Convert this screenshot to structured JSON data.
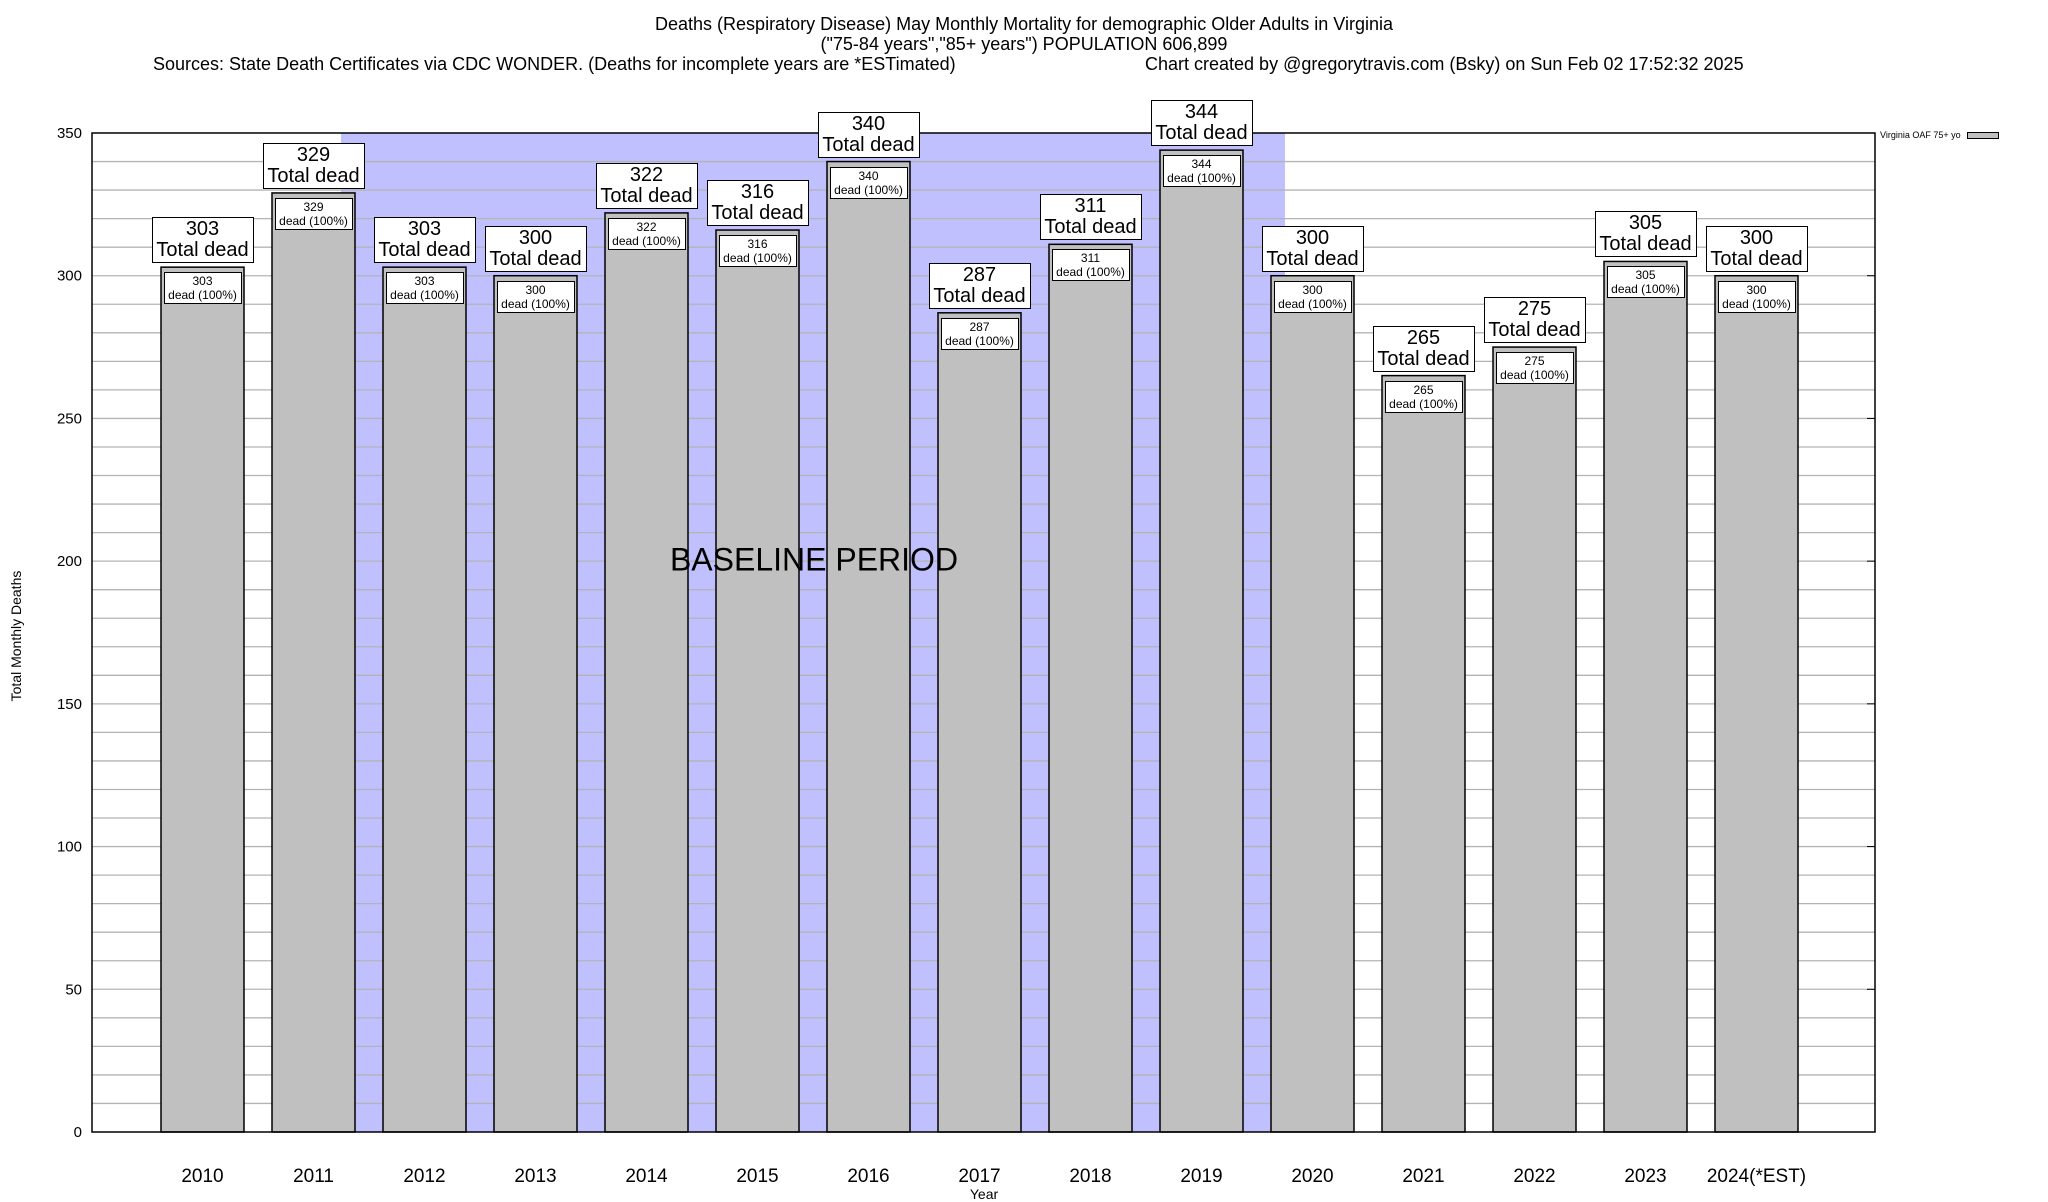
{
  "title_lines": [
    "Deaths (Respiratory Disease) May Monthly Mortality for demographic Older Adults in Virginia",
    "(\"75-84 years\",\"85+ years\") POPULATION 606,899"
  ],
  "sources": "Sources: State Death Certificates via CDC WONDER. (Deaths for incomplete years are *ESTimated)",
  "credit": "Chart created by @gregorytravis.com (Bsky) on Sun Feb 02 17:52:32 2025",
  "chart_data": {
    "type": "bar",
    "xlabel": "Year",
    "ylabel": "Total Monthly Deaths",
    "ylim": [
      0,
      350
    ],
    "yticks": [
      0,
      50,
      100,
      150,
      200,
      250,
      300,
      350
    ],
    "grid": true,
    "legend": {
      "position": "top-right",
      "entries": [
        "Virginia OAF 75+ yo"
      ]
    },
    "categories": [
      "2010",
      "2011",
      "2012",
      "2013",
      "2014",
      "2015",
      "2016",
      "2017",
      "2018",
      "2019",
      "2020",
      "2021",
      "2022",
      "2023",
      "2024(*EST)"
    ],
    "series": [
      {
        "name": "Virginia OAF 75+ yo",
        "values": [
          303,
          329,
          303,
          300,
          322,
          316,
          340,
          287,
          311,
          344,
          300,
          265,
          275,
          305,
          300
        ]
      }
    ],
    "total_label": "Total dead",
    "inner_label_suffix": "dead (100%)",
    "annotation": {
      "text": "BASELINE PERIOD",
      "from": "2012",
      "to": "2019"
    },
    "colors": {
      "bar": "#c0c0c0",
      "baseline": "#c0c0ff",
      "grid": "#b4b4b4"
    }
  }
}
